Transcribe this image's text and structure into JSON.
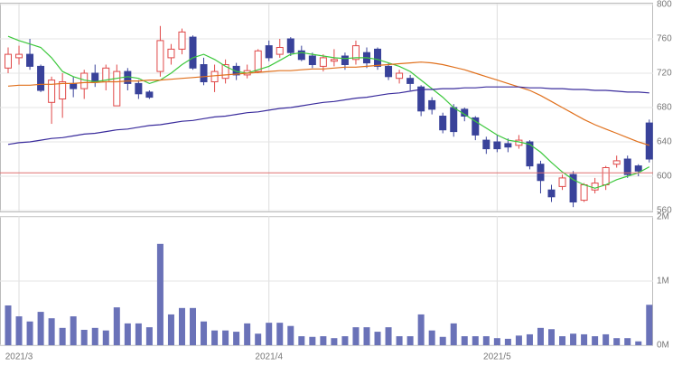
{
  "chart_data": [
    {
      "type": "candlestick",
      "open": [
        726,
        738,
        742,
        728,
        686,
        690,
        708,
        702,
        720,
        710,
        682,
        722,
        708,
        698,
        722,
        738,
        748,
        762,
        730,
        710,
        714,
        728,
        718,
        722,
        752,
        742,
        760,
        746,
        740,
        728,
        734,
        740,
        736,
        744,
        748,
        728,
        714,
        714,
        704,
        688,
        670,
        680,
        678,
        668,
        642,
        640,
        638,
        636,
        640,
        614,
        584,
        588,
        602,
        572,
        584,
        590,
        614,
        620,
        612,
        662
      ],
      "high": [
        750,
        752,
        760,
        730,
        716,
        720,
        716,
        724,
        730,
        730,
        730,
        726,
        712,
        700,
        775,
        754,
        772,
        764,
        738,
        730,
        736,
        732,
        730,
        748,
        758,
        760,
        762,
        752,
        744,
        742,
        748,
        744,
        758,
        750,
        750,
        732,
        724,
        718,
        706,
        692,
        674,
        684,
        680,
        670,
        646,
        648,
        644,
        648,
        642,
        618,
        590,
        602,
        606,
        592,
        598,
        612,
        624,
        624,
        614,
        666
      ],
      "low": [
        720,
        730,
        724,
        698,
        661,
        668,
        692,
        690,
        704,
        700,
        682,
        700,
        690,
        690,
        716,
        730,
        742,
        724,
        706,
        698,
        708,
        712,
        714,
        720,
        734,
        738,
        740,
        734,
        726,
        722,
        728,
        724,
        730,
        726,
        724,
        712,
        708,
        700,
        670,
        672,
        650,
        646,
        664,
        642,
        626,
        628,
        628,
        632,
        608,
        580,
        570,
        584,
        564,
        570,
        580,
        584,
        610,
        598,
        600,
        616
      ],
      "close": [
        742,
        742,
        728,
        700,
        712,
        710,
        702,
        720,
        710,
        726,
        722,
        708,
        696,
        692,
        758,
        748,
        768,
        726,
        710,
        722,
        730,
        718,
        723,
        746,
        738,
        750,
        744,
        736,
        730,
        738,
        736,
        730,
        752,
        732,
        728,
        716,
        720,
        708,
        676,
        678,
        654,
        652,
        670,
        648,
        632,
        632,
        634,
        642,
        612,
        595,
        576,
        598,
        570,
        590,
        592,
        610,
        618,
        602,
        606,
        620
      ],
      "up_color": "#e04848",
      "down_color": "#39429a",
      "series": [
        {
          "color": "#3cc83c",
          "values": [
            763,
            758,
            754,
            750,
            738,
            722,
            716,
            712,
            710,
            712,
            714,
            716,
            714,
            708,
            712,
            720,
            730,
            738,
            742,
            736,
            728,
            722,
            720,
            724,
            728,
            735,
            742,
            744,
            742,
            740,
            738,
            737,
            738,
            738,
            736,
            732,
            728,
            722,
            712,
            702,
            692,
            680,
            672,
            664,
            656,
            648,
            642,
            640,
            637,
            628,
            616,
            605,
            596,
            590,
            586,
            590,
            596,
            600,
            604,
            611
          ]
        },
        {
          "color": "#e0701c",
          "values": [
            705,
            706,
            706,
            707,
            707,
            708,
            708,
            709,
            709,
            710,
            710,
            711,
            711,
            712,
            712,
            713,
            714,
            715,
            716,
            717,
            718,
            719,
            720,
            721,
            722,
            723,
            723,
            724,
            725,
            725,
            726,
            727,
            727,
            728,
            729,
            730,
            731,
            732,
            733,
            732,
            730,
            727,
            724,
            720,
            716,
            712,
            708,
            704,
            700,
            694,
            687,
            680,
            673,
            666,
            660,
            655,
            650,
            645,
            640,
            636
          ]
        },
        {
          "color": "#3a2c9c",
          "values": [
            637,
            639,
            640,
            642,
            644,
            645,
            647,
            649,
            650,
            652,
            654,
            655,
            657,
            659,
            660,
            662,
            664,
            665,
            667,
            669,
            670,
            672,
            674,
            675,
            677,
            679,
            680,
            682,
            684,
            686,
            687,
            689,
            691,
            692,
            694,
            696,
            697,
            699,
            701,
            701,
            702,
            702,
            703,
            703,
            704,
            704,
            704,
            704,
            703,
            703,
            702,
            702,
            701,
            701,
            700,
            700,
            699,
            698,
            698,
            697
          ]
        }
      ],
      "hline": {
        "value": 604,
        "color": "#e07070"
      },
      "ylim": [
        560,
        800
      ],
      "yticks": [
        560,
        600,
        640,
        680,
        720,
        760,
        800
      ],
      "grid": true
    },
    {
      "type": "bar",
      "categories": [
        null,
        "2021/3",
        null,
        null,
        null,
        null,
        null,
        null,
        null,
        null,
        null,
        null,
        null,
        null,
        null,
        null,
        null,
        null,
        null,
        null,
        null,
        null,
        null,
        null,
        "2021/4",
        null,
        null,
        null,
        null,
        null,
        null,
        null,
        null,
        null,
        null,
        null,
        null,
        null,
        null,
        null,
        null,
        null,
        null,
        null,
        null,
        "2021/5",
        null,
        null,
        null,
        null,
        null,
        null,
        null,
        null,
        null,
        null,
        null,
        null,
        null,
        null
      ],
      "values": [
        620000,
        450000,
        370000,
        520000,
        420000,
        270000,
        450000,
        240000,
        270000,
        230000,
        590000,
        340000,
        340000,
        280000,
        1580000,
        480000,
        580000,
        580000,
        370000,
        230000,
        230000,
        210000,
        340000,
        180000,
        350000,
        350000,
        300000,
        140000,
        130000,
        140000,
        110000,
        140000,
        280000,
        280000,
        210000,
        280000,
        140000,
        140000,
        480000,
        230000,
        130000,
        340000,
        140000,
        140000,
        140000,
        110000,
        100000,
        150000,
        170000,
        270000,
        250000,
        140000,
        180000,
        170000,
        140000,
        170000,
        110000,
        110000,
        60000,
        630000
      ],
      "color": "#6a72b8",
      "ylim": [
        0,
        2000000
      ],
      "yticks": [
        {
          "value": 0,
          "label": "0M"
        },
        {
          "value": 1000000,
          "label": "1M"
        },
        {
          "value": 2000000,
          "label": "2M"
        }
      ],
      "grid": true
    }
  ]
}
